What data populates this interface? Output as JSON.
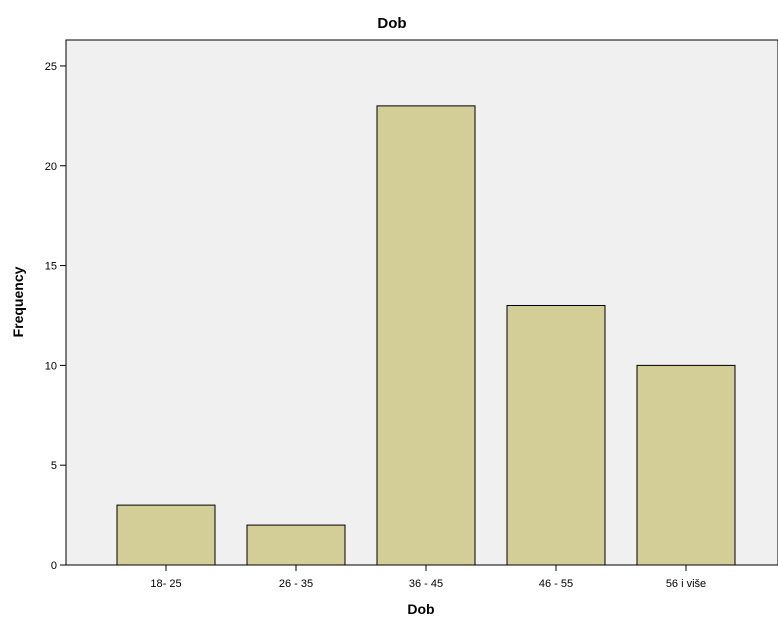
{
  "chart_data": {
    "type": "bar",
    "title": "Dob",
    "xlabel": "Dob",
    "ylabel": "Frequency",
    "categories": [
      "18- 25",
      "26 - 35",
      "36 - 45",
      "46 - 55",
      "56 i više"
    ],
    "values": [
      3,
      2,
      23,
      13,
      10
    ],
    "ylim": [
      0,
      26.3
    ],
    "yticks": [
      0,
      5,
      10,
      15,
      20,
      25
    ],
    "grid": false,
    "colors": {
      "bar_fill": "#d3ce97",
      "plot_background": "#f0f0f0",
      "outline": "#000000"
    }
  }
}
